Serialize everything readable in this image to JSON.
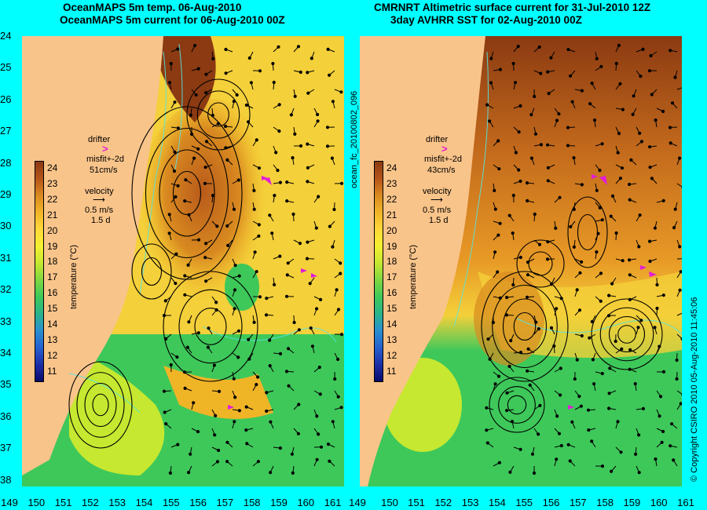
{
  "titles": {
    "left_1": "OceanMAPS 5m temp. 06-Aug-2010",
    "left_2": "OceanMAPS 5m current for 06-Aug-2010 00Z",
    "right_1": "CMRNRT Altimetric surface current for 31-Jul-2010 12Z",
    "right_2": "3day AVHRR SST for 02-Aug-2010 00Z"
  },
  "y_ticks": [
    "24",
    "25",
    "26",
    "27",
    "28",
    "29",
    "30",
    "31",
    "32",
    "33",
    "34",
    "35",
    "36",
    "37",
    "38"
  ],
  "x_ticks_left": [
    "149",
    "150",
    "151",
    "152",
    "153",
    "154",
    "155",
    "156",
    "157",
    "158",
    "159",
    "160",
    "161"
  ],
  "x_ticks_right": [
    "151",
    "152",
    "153",
    "154",
    "155",
    "156",
    "157",
    "158",
    "159",
    "160",
    "161"
  ],
  "x_tick_right_first": "149",
  "x_tick_right_second": "150",
  "middle_label": "ocean_fc_20100802_096",
  "right_side_label": "© Copyright CSIRO 2010    05-Aug-2010 11:45:06",
  "left_legend": {
    "drifter": "drifter",
    "misfit": "misfit+-2d",
    "speed": "51cm/s",
    "velocity": "velocity",
    "vel_scale": "0.5 m/s",
    "vel_time": "1.5 d"
  },
  "right_legend": {
    "drifter": "drifter",
    "misfit": "misfit+-2d",
    "speed": "43cm/s",
    "velocity": "velocity",
    "vel_scale": "0.5 m/s",
    "vel_time": "1.5 d"
  },
  "colorbar": {
    "label": "temperature (°C)",
    "ticks": [
      "24",
      "23",
      "22",
      "21",
      "20",
      "19",
      "18",
      "17",
      "16",
      "15",
      "14",
      "13",
      "12",
      "11"
    ],
    "colors": [
      "#8b3a12",
      "#b5541a",
      "#d98a20",
      "#f0b427",
      "#ffd83a",
      "#f4f030",
      "#c6e830",
      "#7fd640",
      "#3ec85a",
      "#29b48a",
      "#2a8fd0",
      "#2461cf",
      "#1d2ea8",
      "#0a0a6a"
    ]
  },
  "colors": {
    "land": "#f9c48a",
    "drifter": "#e21cd9",
    "contour": "#55e6e0",
    "background": "#00ffff"
  }
}
